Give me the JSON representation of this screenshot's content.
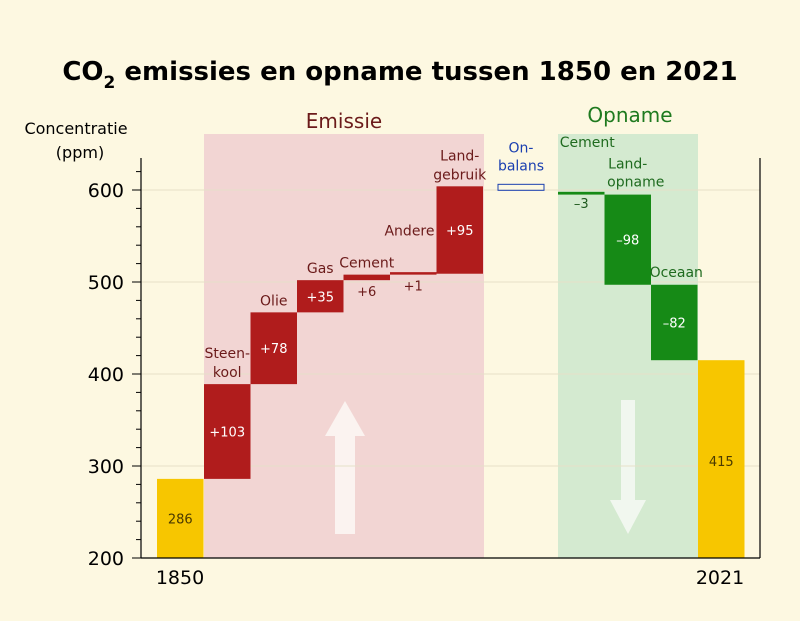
{
  "colors": {
    "background": "#fdf8e1",
    "emission_bar": "#b01c1c",
    "uptake_bar": "#168a16",
    "baseline_bar": "#f7c600",
    "emission_region": "#f2d5d3",
    "uptake_region": "#d4ead0",
    "imbalance": "#1a3fb0",
    "gridline": "#e6e0c8"
  },
  "chart_data": {
    "type": "waterfall",
    "title_main": "CO",
    "title_sub": "2",
    "title_rest": " emissies en opname tussen 1850 en 2021",
    "ylabel_line1": "Concentratie",
    "ylabel_line2": "(ppm)",
    "ylim": [
      200,
      620
    ],
    "yticks": [
      200,
      300,
      400,
      500,
      600
    ],
    "ytick_labels": [
      "200",
      "300",
      "400",
      "500",
      "600"
    ],
    "xtick_labels": [
      "1850",
      "2021"
    ],
    "region_emission_label": "Emissie",
    "region_uptake_label": "Opname",
    "start": {
      "value": 286,
      "label": "286"
    },
    "end": {
      "value": 415,
      "label": "415"
    },
    "emissions": [
      {
        "line1": "Steen-",
        "line2": "kool",
        "value": 103,
        "label": "+103"
      },
      {
        "line1": "Olie",
        "line2": "",
        "value": 78,
        "label": "+78"
      },
      {
        "line1": "Gas",
        "line2": "",
        "value": 35,
        "label": "+35"
      },
      {
        "line1": "Cement",
        "line2": "",
        "value": 6,
        "label": "+6"
      },
      {
        "line1": "Andere",
        "line2": "",
        "value": 1,
        "label": "+1"
      },
      {
        "line1": "Land-",
        "line2": "gebruik",
        "value": 95,
        "label": "+95"
      }
    ],
    "imbalance": {
      "line1": "On-",
      "line2": "balans",
      "value": -6
    },
    "uptakes": [
      {
        "line1": "Cement",
        "line2": "",
        "value": -3,
        "label": "–3"
      },
      {
        "line1": "Land-",
        "line2": "opname",
        "value": -98,
        "label": "–98"
      },
      {
        "line1": "Oceaan",
        "line2": "",
        "value": -82,
        "label": "–82"
      }
    ]
  }
}
